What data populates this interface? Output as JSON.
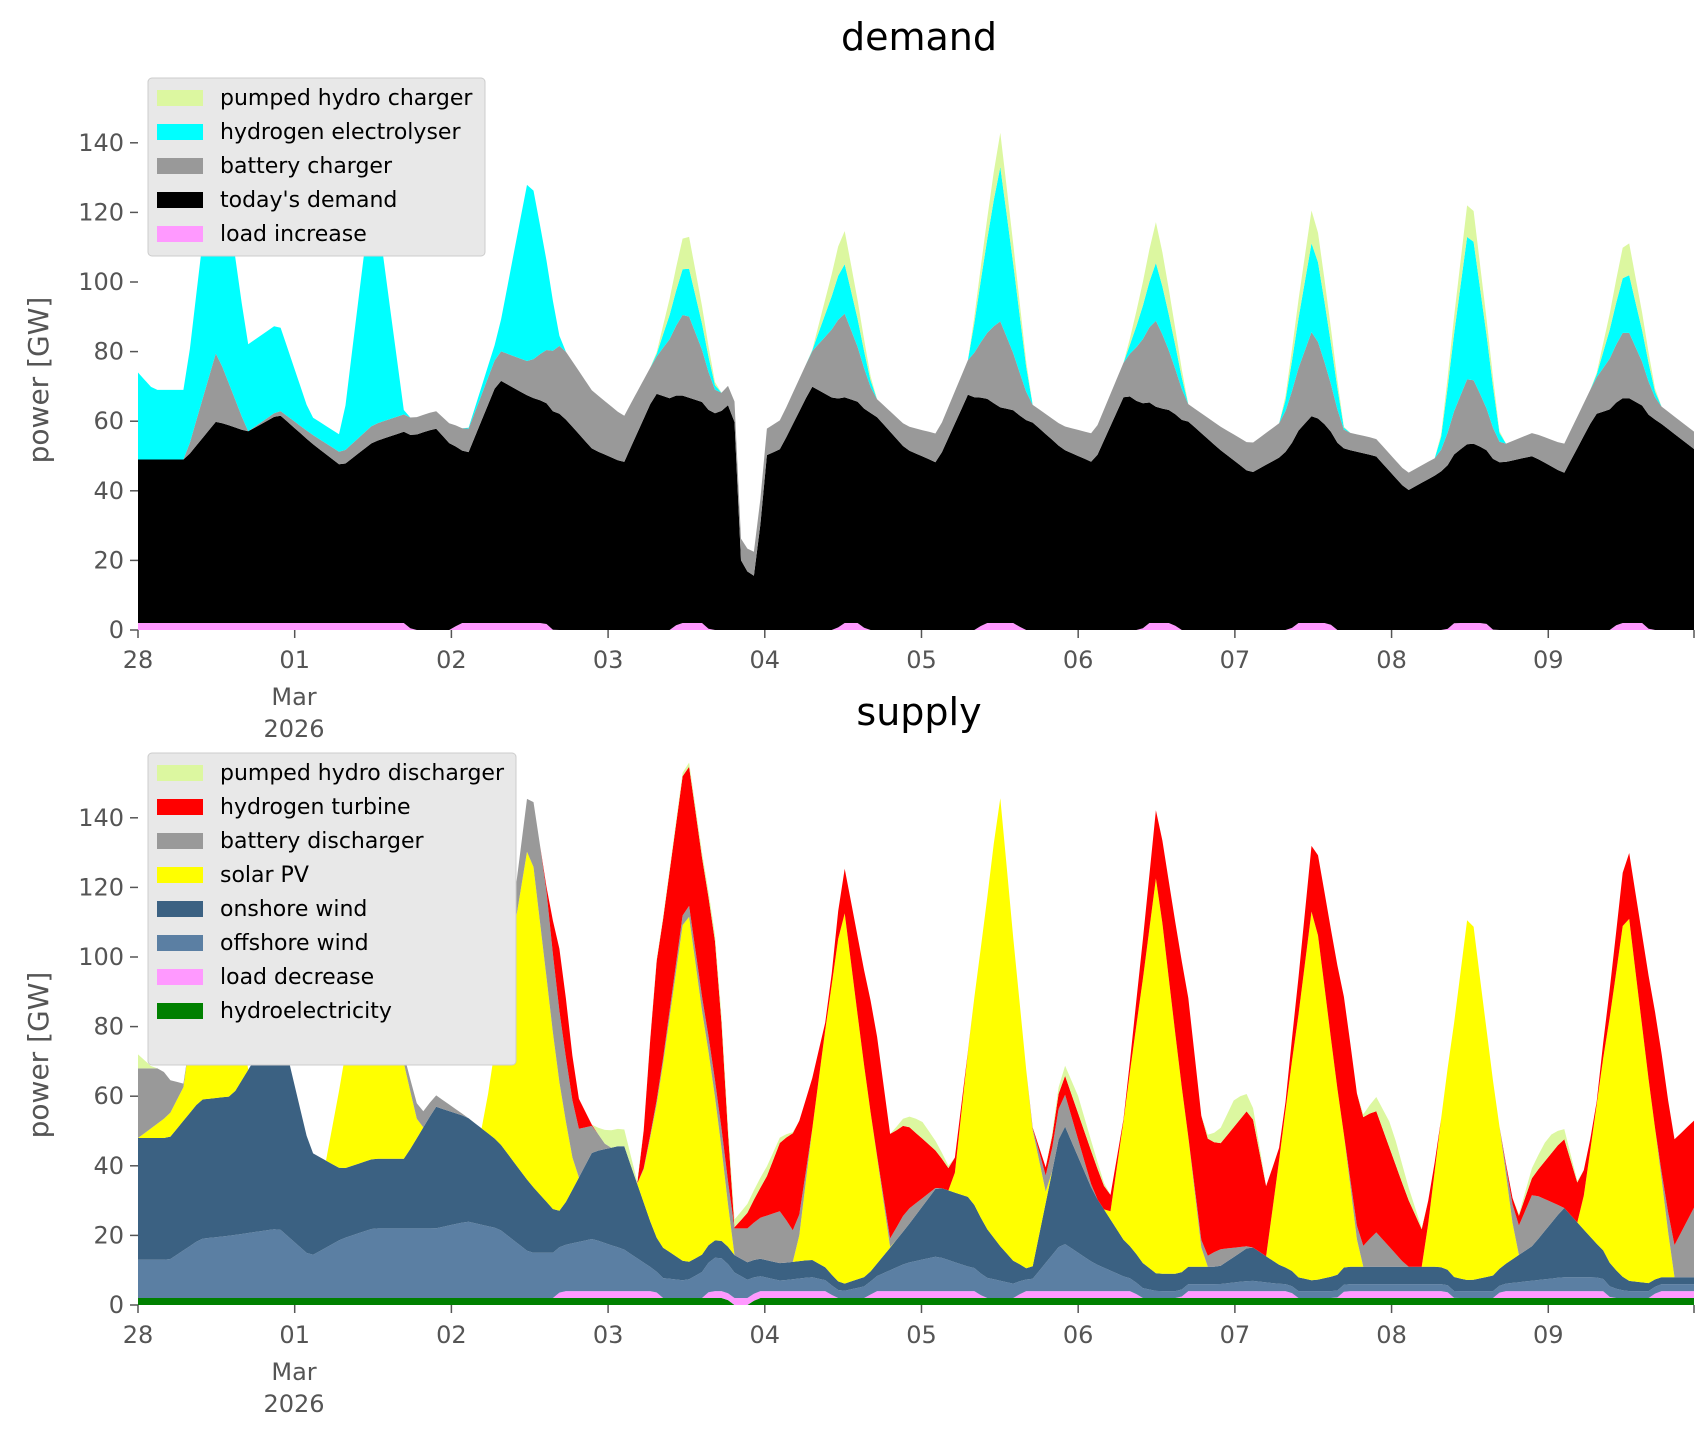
{
  "chart_data": [
    {
      "type": "area",
      "title": "demand",
      "xlabel": "",
      "ylabel": "power [GW]",
      "ylim": [
        0,
        150
      ],
      "x_ticks": [
        "28",
        "01",
        "02",
        "03",
        "04",
        "05",
        "06",
        "07",
        "08",
        "09"
      ],
      "x_tick_sublabel": [
        "Mar",
        "2026"
      ],
      "x_range_days": [
        0,
        9.93
      ],
      "y_ticks": [
        0,
        20,
        40,
        60,
        80,
        100,
        120,
        140
      ],
      "grid": false,
      "legend_position": "upper-left",
      "stacked": true,
      "series": [
        {
          "name": "pumped hydro charger",
          "color": "#dcf7a0",
          "x": [
            0,
            0.5,
            1.5,
            2.5,
            3.0,
            3.3,
            3.5,
            3.7,
            4.3,
            4.5,
            4.7,
            5.3,
            5.5,
            5.7,
            6.3,
            6.5,
            6.7,
            7.3,
            7.5,
            7.7,
            8.3,
            8.5,
            8.7,
            9.3,
            9.5,
            9.7
          ],
          "values": [
            0,
            0,
            0,
            0,
            0,
            0,
            10,
            0,
            0,
            10,
            0,
            0,
            10,
            0,
            0,
            12,
            0,
            0,
            10,
            0,
            0,
            10,
            0,
            0,
            10,
            0
          ]
        },
        {
          "name": "hydrogen electrolyser",
          "color": "#00ffff",
          "x": [
            0,
            0.1,
            0.3,
            0.5,
            0.7,
            0.9,
            1.1,
            1.3,
            1.5,
            1.7,
            1.9,
            2.1,
            2.3,
            2.5,
            2.7,
            3.3,
            3.5,
            3.7,
            4.3,
            4.5,
            4.7,
            5.3,
            5.5,
            5.7,
            6.3,
            6.5,
            6.7,
            7.3,
            7.5,
            7.7,
            8.3,
            8.5,
            8.7,
            9.3,
            9.5,
            9.7
          ],
          "values": [
            25,
            20,
            20,
            65,
            25,
            25,
            5,
            5,
            70,
            0,
            0,
            0,
            5,
            55,
            0,
            0,
            15,
            0,
            0,
            15,
            0,
            0,
            45,
            0,
            0,
            17,
            0,
            0,
            27,
            0,
            0,
            45,
            0,
            0,
            18,
            0
          ]
        },
        {
          "name": "battery charger",
          "color": "#999999",
          "x": [
            0,
            0.3,
            0.5,
            0.7,
            1.5,
            1.9,
            2.5,
            2.7,
            3.3,
            3.5,
            3.7,
            4.3,
            4.5,
            4.7,
            5.3,
            5.5,
            5.7,
            6.3,
            6.5,
            6.7,
            7.3,
            7.5,
            7.7,
            8.3,
            8.5,
            8.7,
            9.3,
            9.5,
            9.7
          ],
          "values": [
            0,
            0,
            20,
            0,
            5,
            5,
            10,
            20,
            10,
            25,
            5,
            10,
            25,
            5,
            10,
            25,
            5,
            10,
            25,
            5,
            10,
            25,
            5,
            5,
            20,
            5,
            10,
            20,
            5
          ]
        },
        {
          "name": "today's demand",
          "color": "#000000",
          "x": [
            0,
            0.3,
            0.5,
            0.7,
            0.9,
            1.1,
            1.3,
            1.5,
            1.7,
            1.9,
            2.1,
            2.3,
            2.5,
            2.7,
            2.9,
            3.1,
            3.3,
            3.5,
            3.7,
            3.8,
            3.85,
            3.95,
            4.0,
            4.1,
            4.3,
            4.5,
            4.7,
            4.9,
            5.1,
            5.3,
            5.5,
            5.7,
            5.9,
            6.1,
            6.3,
            6.5,
            6.7,
            6.9,
            7.1,
            7.3,
            7.5,
            7.7,
            7.9,
            8.1,
            8.3,
            8.5,
            8.7,
            8.9,
            9.1,
            9.3,
            9.5,
            9.7,
            9.93
          ],
          "values": [
            47,
            47,
            58,
            55,
            60,
            52,
            45,
            52,
            55,
            58,
            48,
            70,
            65,
            62,
            52,
            48,
            68,
            65,
            62,
            66,
            18,
            15,
            50,
            52,
            70,
            65,
            62,
            52,
            48,
            68,
            62,
            60,
            52,
            48,
            68,
            62,
            60,
            52,
            45,
            50,
            60,
            52,
            50,
            40,
            45,
            52,
            48,
            50,
            45,
            62,
            65,
            60,
            52
          ]
        },
        {
          "name": "load increase",
          "color": "#ff99ff",
          "x": [
            0,
            1.7,
            1.75,
            2.0,
            2.05,
            2.6,
            2.65,
            3.4,
            3.45,
            3.6,
            3.65,
            4.45,
            4.5,
            4.6,
            4.65,
            5.35,
            5.4,
            5.6,
            5.65,
            6.4,
            6.45,
            6.6,
            6.65,
            7.35,
            7.4,
            7.6,
            7.65,
            8.35,
            8.4,
            8.6,
            8.65,
            9.4,
            9.45,
            9.6,
            9.65,
            9.93
          ],
          "values": [
            2,
            2,
            0,
            0,
            2,
            2,
            0,
            0,
            2,
            2,
            0,
            0,
            2,
            2,
            0,
            0,
            2,
            2,
            0,
            0,
            2,
            2,
            0,
            0,
            2,
            2,
            0,
            0,
            2,
            2,
            0,
            0,
            2,
            2,
            0,
            0
          ]
        }
      ]
    },
    {
      "type": "area",
      "title": "supply",
      "xlabel": "",
      "ylabel": "power [GW]",
      "ylim": [
        0,
        150
      ],
      "x_ticks": [
        "28",
        "01",
        "02",
        "03",
        "04",
        "05",
        "06",
        "07",
        "08",
        "09"
      ],
      "x_tick_sublabel": [
        "Mar",
        "2026"
      ],
      "x_range_days": [
        0,
        9.93
      ],
      "y_ticks": [
        0,
        20,
        40,
        60,
        80,
        100,
        120,
        140
      ],
      "grid": false,
      "legend_position": "upper-left",
      "stacked": true,
      "series": [
        {
          "name": "pumped hydro discharger",
          "color": "#dcf7a0",
          "x": [
            0,
            0.1,
            2.9,
            3.0,
            3.1,
            3.2,
            4.0,
            4.2,
            4.8,
            5.0,
            5.2,
            5.8,
            6.0,
            6.2,
            6.8,
            7.0,
            7.2,
            7.8,
            8.0,
            8.2,
            8.8,
            9.0,
            9.2,
            9.93
          ],
          "values": [
            4,
            0,
            0,
            5,
            5,
            0,
            3,
            0,
            0,
            5,
            0,
            0,
            5,
            0,
            0,
            8,
            0,
            0,
            8,
            0,
            0,
            6,
            0,
            0
          ]
        },
        {
          "name": "hydrogen turbine",
          "color": "#ff0000",
          "x": [
            0,
            2.6,
            2.7,
            2.9,
            3.0,
            3.2,
            3.3,
            3.7,
            3.8,
            4.0,
            4.2,
            4.4,
            4.7,
            4.9,
            5.1,
            5.3,
            5.7,
            5.9,
            6.1,
            6.3,
            6.7,
            6.9,
            7.1,
            7.3,
            7.7,
            7.9,
            8.1,
            8.3,
            8.7,
            8.9,
            9.1,
            9.3,
            9.7,
            9.93
          ],
          "values": [
            0,
            0,
            20,
            0,
            0,
            0,
            40,
            40,
            0,
            10,
            30,
            0,
            35,
            25,
            10,
            0,
            0,
            5,
            10,
            0,
            40,
            30,
            40,
            0,
            40,
            35,
            20,
            0,
            0,
            5,
            20,
            0,
            35,
            25
          ]
        },
        {
          "name": "battery discharger",
          "color": "#999999",
          "x": [
            0,
            0.15,
            0.3,
            1.6,
            1.8,
            2.1,
            2.3,
            2.6,
            2.8,
            3.0,
            3.2,
            3.7,
            3.9,
            4.1,
            4.3,
            4.7,
            4.9,
            5.1,
            5.3,
            5.7,
            5.9,
            6.1,
            6.3,
            6.7,
            6.9,
            7.1,
            7.3,
            7.7,
            7.9,
            8.1,
            8.3,
            8.7,
            8.9,
            9.1,
            9.3,
            9.7,
            9.93
          ],
          "values": [
            20,
            15,
            0,
            0,
            5,
            0,
            0,
            25,
            15,
            0,
            0,
            5,
            10,
            15,
            0,
            0,
            5,
            0,
            0,
            0,
            10,
            0,
            0,
            0,
            5,
            0,
            0,
            0,
            10,
            0,
            0,
            0,
            15,
            0,
            0,
            0,
            20
          ]
        },
        {
          "name": "solar PV",
          "color": "#ffff00",
          "x": [
            0,
            0.3,
            0.5,
            0.7,
            1.2,
            1.5,
            1.8,
            2.2,
            2.5,
            2.8,
            3.2,
            3.5,
            3.8,
            4.2,
            4.5,
            4.8,
            5.2,
            5.5,
            5.8,
            6.2,
            6.5,
            6.8,
            7.2,
            7.5,
            7.8,
            8.2,
            8.5,
            8.8,
            9.2,
            9.5,
            9.8
          ],
          "values": [
            0,
            10,
            80,
            0,
            0,
            80,
            0,
            0,
            100,
            0,
            0,
            105,
            0,
            0,
            110,
            0,
            0,
            130,
            0,
            0,
            115,
            0,
            0,
            110,
            0,
            0,
            110,
            0,
            0,
            110,
            0
          ]
        },
        {
          "name": "onshore wind",
          "color": "#3b6182",
          "x": [
            0,
            0.2,
            0.4,
            0.6,
            0.9,
            1.1,
            1.3,
            1.5,
            1.7,
            1.9,
            2.1,
            2.3,
            2.5,
            2.7,
            2.9,
            3.1,
            3.3,
            3.5,
            3.7,
            3.9,
            4.1,
            4.3,
            4.5,
            4.7,
            4.9,
            5.1,
            5.3,
            5.5,
            5.7,
            5.9,
            6.1,
            6.3,
            6.5,
            6.7,
            6.9,
            7.1,
            7.3,
            7.5,
            7.7,
            7.9,
            8.1,
            8.3,
            8.5,
            8.7,
            8.9,
            9.1,
            9.3,
            9.5,
            9.7,
            9.93
          ],
          "values": [
            35,
            35,
            40,
            40,
            60,
            30,
            20,
            20,
            20,
            35,
            30,
            25,
            20,
            10,
            25,
            30,
            10,
            5,
            5,
            5,
            5,
            5,
            2,
            3,
            10,
            20,
            20,
            10,
            2,
            35,
            20,
            10,
            5,
            5,
            5,
            10,
            5,
            3,
            5,
            5,
            5,
            5,
            3,
            5,
            10,
            20,
            10,
            3,
            2,
            2
          ]
        },
        {
          "name": "offshore wind",
          "color": "#5b7fa3",
          "x": [
            0,
            0.2,
            0.4,
            0.6,
            0.9,
            1.1,
            1.3,
            1.5,
            1.7,
            1.9,
            2.1,
            2.3,
            2.5,
            2.7,
            2.9,
            3.1,
            3.3,
            3.5,
            3.7,
            3.9,
            4.1,
            4.3,
            4.5,
            4.7,
            4.9,
            5.1,
            5.3,
            5.5,
            5.7,
            5.9,
            6.1,
            6.3,
            6.5,
            6.7,
            6.9,
            7.1,
            7.3,
            7.5,
            7.7,
            7.9,
            8.1,
            8.3,
            8.5,
            8.7,
            8.9,
            9.1,
            9.3,
            9.5,
            9.7,
            9.93
          ],
          "values": [
            11,
            11,
            17,
            18,
            20,
            12,
            17,
            20,
            20,
            20,
            22,
            20,
            13,
            13,
            15,
            12,
            6,
            5,
            10,
            5,
            3,
            4,
            2,
            4,
            8,
            10,
            7,
            5,
            3,
            14,
            8,
            4,
            2,
            2,
            2,
            3,
            2,
            2,
            2,
            2,
            2,
            2,
            2,
            2,
            3,
            4,
            4,
            2,
            2,
            2
          ]
        },
        {
          "name": "load decrease",
          "color": "#ff99ff",
          "x": [
            0,
            2.65,
            2.7,
            3.3,
            3.35,
            3.6,
            3.65,
            4.4,
            4.45,
            4.65,
            4.7,
            5.35,
            5.4,
            5.6,
            5.65,
            6.35,
            6.4,
            6.65,
            6.7,
            7.35,
            7.4,
            7.65,
            7.7,
            8.35,
            8.4,
            8.65,
            8.7,
            9.35,
            9.4,
            9.65,
            9.7,
            9.93
          ],
          "values": [
            0,
            0,
            2,
            2,
            0,
            0,
            2,
            2,
            0,
            0,
            2,
            2,
            0,
            0,
            2,
            2,
            0,
            0,
            2,
            2,
            0,
            0,
            2,
            2,
            0,
            0,
            2,
            2,
            0,
            0,
            2,
            2
          ]
        },
        {
          "name": "hydroelectricity",
          "color": "#008000",
          "x": [
            0,
            3.75,
            3.8,
            3.9,
            3.95,
            9.93
          ],
          "values": [
            2,
            2,
            0,
            0,
            2,
            2
          ]
        }
      ]
    }
  ]
}
